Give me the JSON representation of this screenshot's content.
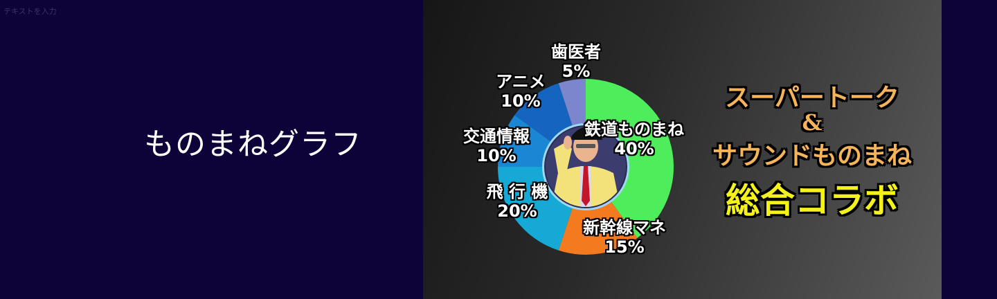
{
  "placeholder_text": "テキストを入力",
  "side_title": "ものまねグラフ",
  "chart_data": {
    "type": "pie",
    "variant": "donut",
    "categories": [
      "鉄道ものまね",
      "新幹線マネ",
      "飛行機",
      "交通情報",
      "アニメ",
      "歯医者"
    ],
    "values": [
      40,
      15,
      20,
      10,
      10,
      5
    ],
    "value_labels": [
      "40%",
      "15%",
      "20%",
      "10%",
      "10%",
      "5%"
    ],
    "label_names": [
      "鉄道ものまね",
      "新幹線マネ",
      "飛 行 機",
      "交通情報",
      "アニメ",
      "歯医者"
    ],
    "colors": [
      "#4ded5c",
      "#f47a20",
      "#17a9d6",
      "#1a86d4",
      "#1565c0",
      "#7b86cc"
    ],
    "start": "top",
    "direction": "clockwise",
    "center_image": "photo of saluting man in yellow jacket and conductor cap"
  },
  "promo": {
    "line1": "スーパートーク",
    "line2": "&",
    "line3": "サウンドものまね",
    "line4": "総合コラボ",
    "color_orange": "#f5b45a",
    "color_yellow": "#f4f21a"
  }
}
